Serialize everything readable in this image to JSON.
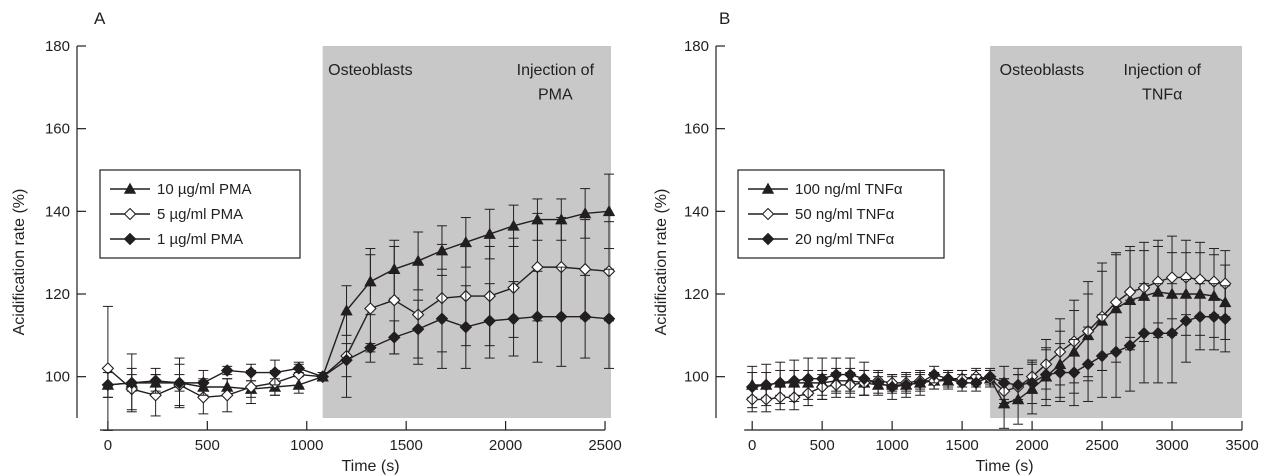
{
  "chart_data": [
    {
      "type": "line",
      "panel_letter": "A",
      "xlabel": "Time (s)",
      "ylabel": "Acidification rate (%)",
      "xlim": [
        -90,
        2530
      ],
      "ylim": [
        90,
        180
      ],
      "xticks": [
        0,
        500,
        1000,
        1500,
        2000,
        2500
      ],
      "yticks": [
        100,
        120,
        140,
        160,
        180
      ],
      "shaded_region": [
        1080,
        2530
      ],
      "annotations": [
        {
          "text": "Osteoblasts",
          "x": 1320,
          "y": 173
        },
        {
          "text": "Injection of",
          "x": 2250,
          "y": 173
        },
        {
          "text": "PMA",
          "x": 2250,
          "y": 167
        }
      ],
      "legend_position": "left-middle",
      "series": [
        {
          "name": "10 µg/ml PMA",
          "marker": "triangle",
          "x": [
            0,
            120,
            240,
            360,
            480,
            600,
            720,
            840,
            960,
            1080,
            1200,
            1320,
            1440,
            1560,
            1680,
            1800,
            1920,
            2040,
            2160,
            2280,
            2400,
            2520
          ],
          "y": [
            98,
            98.5,
            98.5,
            98.5,
            97.5,
            97.5,
            97,
            97.5,
            98,
            100,
            116,
            123,
            126,
            128,
            130.5,
            132.5,
            134.5,
            136.5,
            138,
            138,
            139.5,
            140
          ],
          "err": [
            3,
            2,
            2,
            2,
            2,
            2,
            2,
            2,
            2,
            1,
            6,
            8,
            7,
            7,
            6,
            6,
            6,
            5,
            5,
            5,
            6,
            9
          ]
        },
        {
          "name": "5 µg/ml PMA",
          "marker": "diamond-open",
          "x": [
            0,
            120,
            240,
            360,
            480,
            600,
            720,
            840,
            960,
            1080,
            1200,
            1320,
            1440,
            1560,
            1680,
            1800,
            1920,
            2040,
            2160,
            2280,
            2400,
            2520
          ],
          "y": [
            102,
            97,
            95.5,
            98,
            95,
            95.5,
            97.5,
            98.5,
            100.5,
            100,
            105,
            116.5,
            118.5,
            115,
            119,
            119.5,
            119.5,
            121.5,
            126.5,
            126.5,
            126,
            125.5
          ],
          "err": [
            15,
            5,
            5,
            5,
            4,
            4,
            4,
            3,
            3,
            1,
            10,
            13,
            13,
            12,
            13,
            12,
            12,
            12,
            13,
            12,
            12,
            12
          ]
        },
        {
          "name": "1 µg/ml PMA",
          "marker": "diamond",
          "x": [
            0,
            120,
            240,
            360,
            480,
            600,
            720,
            840,
            960,
            1080,
            1200,
            1320,
            1440,
            1560,
            1680,
            1800,
            1920,
            2040,
            2160,
            2280,
            2400,
            2520
          ],
          "y": [
            98,
            98.5,
            99,
            98.5,
            98.5,
            101.5,
            101,
            101,
            102,
            100,
            104,
            107,
            109.5,
            111.5,
            114,
            112,
            113.5,
            114,
            114.5,
            114.5,
            114.5,
            114
          ],
          "err": [
            3,
            7,
            3,
            6,
            3,
            1,
            2,
            3,
            1,
            1,
            4,
            1,
            4,
            7,
            12,
            10,
            9,
            9,
            11,
            12,
            10,
            12
          ]
        }
      ]
    },
    {
      "type": "line",
      "panel_letter": "B",
      "xlabel": "Time (s)",
      "ylabel": "Acidification rate (%)",
      "xlim": [
        -180,
        3500
      ],
      "ylim": [
        90,
        180
      ],
      "xticks": [
        0,
        500,
        1000,
        1500,
        2000,
        2500,
        3000,
        3500
      ],
      "yticks": [
        100,
        120,
        140,
        160,
        180
      ],
      "shaded_region": [
        1700,
        3500
      ],
      "annotations": [
        {
          "text": "Osteoblasts",
          "x": 2070,
          "y": 173
        },
        {
          "text": "Injection of",
          "x": 2930,
          "y": 173
        },
        {
          "text": "TNFα",
          "x": 2930,
          "y": 167
        }
      ],
      "legend_position": "left-middle",
      "series": [
        {
          "name": "100 ng/ml TNFα",
          "marker": "triangle",
          "x": [
            0,
            100,
            200,
            300,
            400,
            500,
            600,
            700,
            800,
            900,
            1000,
            1100,
            1200,
            1300,
            1400,
            1500,
            1600,
            1700,
            1800,
            1900,
            2000,
            2100,
            2200,
            2300,
            2400,
            2500,
            2600,
            2700,
            2800,
            2900,
            3000,
            3100,
            3200,
            3300,
            3380
          ],
          "y": [
            98,
            98,
            98.5,
            98.5,
            98.5,
            98.5,
            99,
            99,
            98.5,
            98,
            98,
            98,
            98.5,
            99,
            99,
            99.5,
            99.5,
            99.5,
            93.5,
            94.5,
            97,
            100,
            103,
            106,
            110,
            113.5,
            116.5,
            118.5,
            119.5,
            120.5,
            120,
            120,
            120,
            119.5,
            118
          ],
          "err": [
            3,
            3,
            3,
            3,
            3,
            3,
            3,
            3,
            3,
            2,
            2,
            2,
            2,
            2,
            2,
            2,
            2,
            2,
            6,
            6,
            6,
            7,
            8,
            10,
            10,
            12,
            13,
            12,
            11,
            11,
            10,
            10,
            10,
            10,
            9
          ]
        },
        {
          "name": "50 ng/ml TNFα",
          "marker": "diamond-open",
          "x": [
            0,
            100,
            200,
            300,
            400,
            500,
            600,
            700,
            800,
            900,
            1000,
            1100,
            1200,
            1300,
            1400,
            1500,
            1600,
            1700,
            1800,
            1900,
            2000,
            2100,
            2200,
            2300,
            2400,
            2500,
            2600,
            2700,
            2800,
            2900,
            3000,
            3100,
            3200,
            3300,
            3380
          ],
          "y": [
            94.5,
            94.5,
            95,
            95,
            96,
            97.5,
            98,
            98,
            98.5,
            99,
            98.5,
            98.5,
            99,
            99,
            99.5,
            99.5,
            100,
            99.5,
            96.5,
            97.5,
            100,
            103,
            106,
            108.5,
            111,
            114.5,
            118,
            120.5,
            121.5,
            123,
            124,
            124,
            123.5,
            123,
            122.5
          ],
          "err": [
            3,
            3,
            3,
            3,
            3,
            3,
            3,
            3,
            3,
            2,
            2,
            2,
            2,
            2,
            2,
            2,
            2,
            2,
            3,
            3,
            4,
            6,
            8,
            10,
            12,
            13,
            12,
            11,
            11,
            10,
            10,
            9,
            9,
            8,
            8
          ]
        },
        {
          "name": "20 ng/ml TNFα",
          "marker": "diamond",
          "x": [
            0,
            100,
            200,
            300,
            400,
            500,
            600,
            700,
            800,
            900,
            1000,
            1100,
            1200,
            1300,
            1400,
            1500,
            1600,
            1700,
            1800,
            1900,
            2000,
            2100,
            2200,
            2300,
            2400,
            2500,
            2600,
            2700,
            2800,
            2900,
            3000,
            3100,
            3200,
            3300,
            3380
          ],
          "y": [
            97.5,
            98,
            98.5,
            99,
            99.5,
            99.5,
            100.5,
            100.5,
            99.5,
            98.5,
            97.5,
            98,
            98.5,
            100.5,
            99.5,
            98.5,
            98.5,
            100,
            98.5,
            98,
            98.5,
            100.5,
            101,
            101,
            103,
            105,
            106,
            107.5,
            110.5,
            110.5,
            110.5,
            113.5,
            114.5,
            114.5,
            114
          ],
          "err": [
            5,
            5,
            5,
            5,
            5,
            5,
            4,
            4,
            4,
            3,
            3,
            3,
            3,
            2,
            2,
            2,
            2,
            2,
            4,
            4,
            5,
            6,
            7,
            8,
            9,
            10,
            11,
            11,
            12,
            12,
            12,
            10,
            8,
            8,
            8
          ]
        }
      ]
    }
  ]
}
